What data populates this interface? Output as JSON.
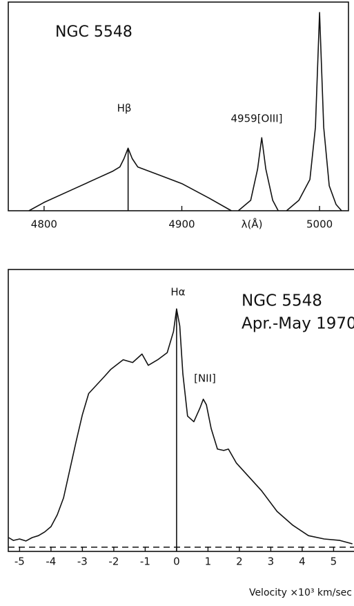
{
  "chart_data": [
    {
      "type": "line",
      "annotations": [
        "NGC 5548",
        "Hβ",
        "4959[OIII]"
      ],
      "xlabel": "λ(Å)",
      "x": [
        4789,
        4800,
        4820,
        4840,
        4850,
        4855,
        4858,
        4861,
        4864,
        4868,
        4880,
        4900,
        4920,
        4936,
        null,
        4941,
        4950,
        4955,
        4958,
        4961,
        4966,
        4970,
        null,
        4976,
        4985,
        4993,
        4997,
        5000,
        5003,
        5007,
        5012,
        5016
      ],
      "series": [
        {
          "color": "#111111",
          "values": [
            0,
            0.04,
            0.1,
            0.16,
            0.19,
            0.21,
            0.25,
            0.3,
            0.25,
            0.21,
            0.18,
            0.13,
            0.06,
            0,
            null,
            0,
            0.05,
            0.2,
            0.35,
            0.2,
            0.05,
            0,
            null,
            0,
            0.05,
            0.15,
            0.4,
            0.95,
            0.4,
            0.12,
            0.03,
            0
          ]
        }
      ],
      "vline_x": 4861,
      "xlim": [
        4774,
        5021
      ],
      "xticks": [
        4800,
        4900,
        5000
      ],
      "ylim": [
        0,
        1
      ]
    },
    {
      "type": "line",
      "annotations": [
        "Hα",
        "NGC 5548",
        "Apr.-May 1970",
        "[NII]"
      ],
      "xlabel": "Velocity ×10³ km/sec",
      "x": [
        -5.35,
        -5.2,
        -5,
        -4.8,
        -4.6,
        -4.4,
        -4.2,
        -4.0,
        -3.8,
        -3.6,
        -3.4,
        -3.2,
        -3.0,
        -2.8,
        -2.3,
        -2.1,
        -1.7,
        -1.4,
        -1.1,
        -0.9,
        -0.6,
        -0.3,
        -0.1,
        0,
        0.1,
        0.2,
        0.35,
        0.55,
        0.75,
        0.85,
        0.95,
        1.1,
        1.3,
        1.5,
        1.65,
        1.9,
        2.3,
        2.7,
        3.2,
        3.7,
        4.2,
        4.7,
        5.2,
        5.6
      ],
      "series": [
        {
          "color": "#111111",
          "values": [
            0.049,
            0.039,
            0.044,
            0.037,
            0.049,
            0.056,
            0.069,
            0.088,
            0.13,
            0.19,
            0.29,
            0.39,
            0.485,
            0.56,
            0.62,
            0.645,
            0.68,
            0.67,
            0.7,
            0.66,
            0.68,
            0.705,
            0.78,
            0.86,
            0.8,
            0.63,
            0.48,
            0.46,
            0.51,
            0.54,
            0.52,
            0.436,
            0.363,
            0.358,
            0.363,
            0.314,
            0.265,
            0.216,
            0.142,
            0.093,
            0.056,
            0.044,
            0.039,
            0.027
          ]
        }
      ],
      "vline_x": 0,
      "baseline": 0.015,
      "xlim": [
        -5.36,
        5.65
      ],
      "xticks": [
        -5,
        -4,
        -3,
        -2,
        -1,
        0,
        1,
        2,
        3,
        4,
        5
      ],
      "ylim": [
        0,
        1
      ]
    }
  ]
}
